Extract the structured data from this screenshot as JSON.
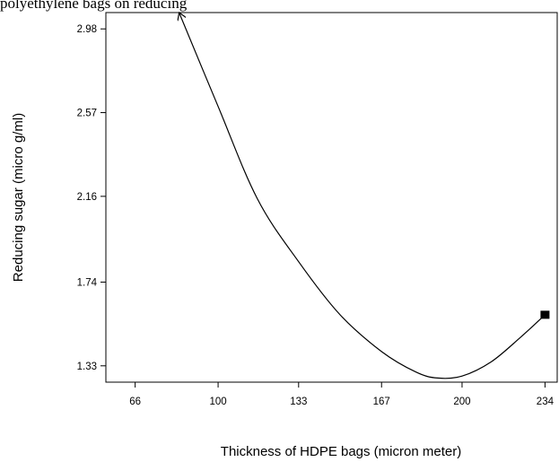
{
  "caption": "polyethylene bags on reducing",
  "chart_data": {
    "type": "line",
    "title": "",
    "xlabel": "Thickness of HDPE bags (micron meter)",
    "ylabel": "Reducing sugar (micro g/ml)",
    "xlim": [
      54,
      239
    ],
    "ylim": [
      1.25,
      3.06
    ],
    "xticks": [
      66,
      100,
      133,
      167,
      200,
      234
    ],
    "yticks": [
      1.33,
      1.74,
      2.16,
      2.57,
      2.98
    ],
    "xtick_labels": [
      "66",
      "100",
      "133",
      "167",
      "200",
      "234"
    ],
    "ytick_labels": [
      "1.33",
      "1.74",
      "2.16",
      "2.57",
      "2.98"
    ],
    "grid": false,
    "series": [
      {
        "x": [
          84,
          100,
          116,
          133,
          150,
          167,
          181,
          190,
          200,
          212,
          224,
          234
        ],
        "y": [
          3.06,
          2.6,
          2.15,
          1.84,
          1.58,
          1.4,
          1.3,
          1.27,
          1.28,
          1.35,
          1.47,
          1.58
        ]
      }
    ],
    "marker": {
      "x": 234,
      "y": 1.58,
      "shape": "square"
    },
    "arrow": {
      "x": 84,
      "y": 3.06
    }
  }
}
